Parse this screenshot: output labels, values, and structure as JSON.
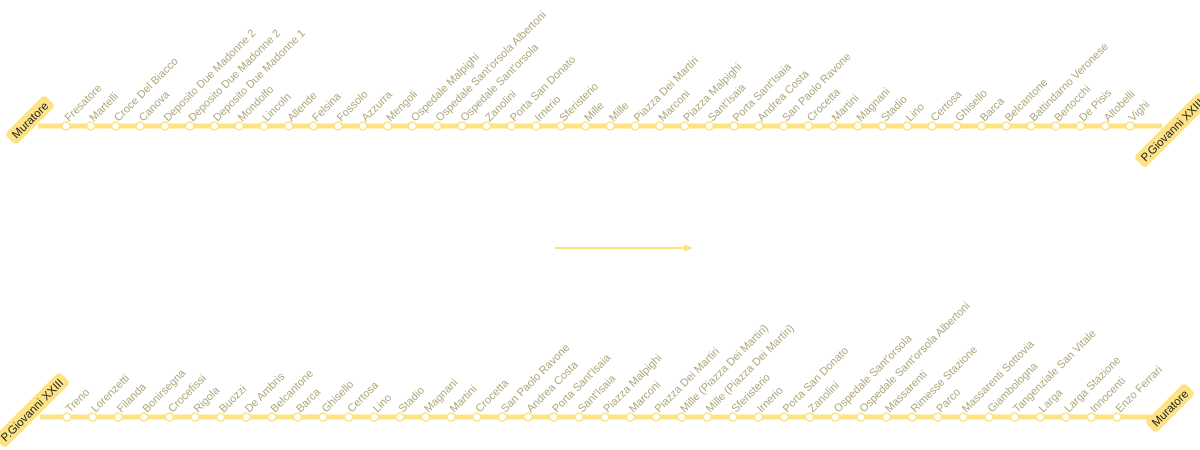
{
  "colors": {
    "line": "#fde384",
    "label": "#aea57a",
    "terminal_text": "#222222",
    "station_fill": "#ffffff"
  },
  "lines": [
    {
      "direction": "top",
      "start_terminal": "Muratore",
      "end_terminal": "P.Giovanni XXIII",
      "stations": [
        "Fresatore",
        "Martelli",
        "Croce Del Biacco",
        "Canova",
        "Deposito Due Madonne 2",
        "Deposito Due Madonne 2",
        "Deposito Due Madonne 1",
        "Mondolfo",
        "Lincoln",
        "Allende",
        "Felsina",
        "Fossolo",
        "Azzurra",
        "Mengoli",
        "Ospedale Malpighi",
        "Ospedale Sant'orsola Albertoni",
        "Ospedale Sant'orsola",
        "Zanolini",
        "Porta San Donato",
        "Irnerio",
        "Sferisterio",
        "Mille",
        "Mille",
        "Piazza Dei Martiri",
        "Marconi",
        "Piazza Malpighi",
        "Sant'Isaia",
        "Porta Sant'Isaia",
        "Andrea Costa",
        "San Paolo Ravone",
        "Crocetta",
        "Martini",
        "Magnani",
        "Stadio",
        "Lino",
        "Certosa",
        "Ghisello",
        "Barca",
        "Belcantone",
        "Battindarno Veronese",
        "Bertocchi",
        "De Pisis",
        "Altobelli",
        "Vighi"
      ]
    },
    {
      "direction": "bottom",
      "start_terminal": "P.Giovanni XXIII",
      "end_terminal": "Muratore",
      "stations": [
        "Treno",
        "Lorenzetti",
        "Filanda",
        "Bonirsegna",
        "Crocefissi",
        "Rigola",
        "Buozzi",
        "De Ambris",
        "Belcantone",
        "Barca",
        "Ghisello",
        "Certosa",
        "Lino",
        "Stadio",
        "Magnani",
        "Martini",
        "Crocetta",
        "San Paolo Ravone",
        "Andrea Costa",
        "Porta Sant'Isaia",
        "Sant'Isaia",
        "Piazza Malpighi",
        "Marconi",
        "Piazza Dei Martiri",
        "Mille (Piazza Dei Martiri)",
        "Mille (Piazza Dei Martiri)",
        "Sferisterio",
        "Irnerio",
        "Porta San Donato",
        "Zanolini",
        "Ospedale Sant'orsola",
        "Ospedale Sant'orsola Albertoni",
        "Massarenti",
        "Rimesse Stazione",
        "Parco",
        "Massarenti Sottovia",
        "Giambologna",
        "Tangenziale San Vitale",
        "Larga",
        "Larga Stazione",
        "Innocenti",
        "Enzo Ferrari"
      ]
    }
  ],
  "direction_arrow": "arrow-right-icon"
}
